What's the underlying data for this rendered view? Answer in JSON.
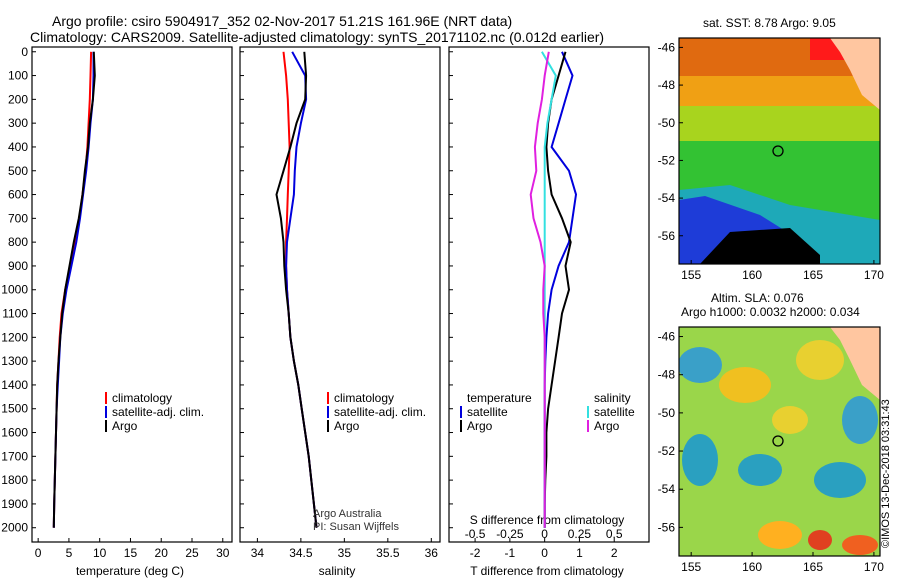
{
  "title_line1": "Argo profile: csiro 5904917_352 02-Nov-2017 51.21S 161.96E (NRT data)",
  "title_line2": "Climatology: CARS2009. Satellite-adjusted climatology: synTS_20171102.nc (0.012d earlier)",
  "map_top_title": "sat. SST: 8.78 Argo: 9.05",
  "map_bottom_title1": "Altim. SLA: 0.076",
  "map_bottom_title2": "Argo h1000: 0.0032 h2000: 0.034",
  "credit": "©IMOS 13-Dec-2018 03:31:43",
  "footnote": [
    "Argo Australia",
    "PI: Susan Wijffels"
  ],
  "colors": {
    "climatology": "#ff0000",
    "satellite": "#0000dd",
    "argo": "#000000",
    "sat_salinity": "#33e0e0",
    "argo_salinity": "#e020e0"
  },
  "pressure_ticks": [
    "0",
    "100",
    "200",
    "300",
    "400",
    "500",
    "600",
    "700",
    "800",
    "900",
    "1000",
    "1100",
    "1200",
    "1300",
    "1400",
    "1500",
    "1600",
    "1700",
    "1800",
    "1900",
    "2000"
  ],
  "legends": {
    "temperature": [
      "climatology",
      "satellite-adj. clim.",
      "Argo"
    ],
    "salinity": [
      "climatology",
      "satellite-adj. clim.",
      "Argo"
    ],
    "difference_left_title": "temperature",
    "difference_left": [
      "satellite",
      "Argo"
    ],
    "difference_right_title": "salinity",
    "difference_right": [
      "satellite",
      "Argo"
    ]
  },
  "chart_data": [
    {
      "type": "line",
      "xlabel": "temperature (deg C)",
      "xticks": [
        "0",
        "5",
        "10",
        "15",
        "20",
        "25",
        "30"
      ],
      "xlim": [
        -1,
        31.5
      ],
      "ylim": [
        2060,
        -20
      ],
      "series": [
        {
          "name": "climatology",
          "color": "#ff0000",
          "x": [
            8.6,
            8.5,
            8.4,
            8.2,
            8.0,
            7.7,
            7.2,
            6.7,
            6.0,
            5.2,
            4.4,
            3.8,
            3.5,
            3.3,
            3.1,
            3.0,
            2.9,
            2.8,
            2.7,
            2.6,
            2.55
          ],
          "y": [
            0,
            100,
            200,
            300,
            400,
            500,
            600,
            700,
            800,
            900,
            1000,
            1100,
            1200,
            1300,
            1400,
            1500,
            1600,
            1700,
            1800,
            1900,
            2000
          ]
        },
        {
          "name": "satellite-adj. clim.",
          "color": "#0000dd",
          "x": [
            9.0,
            9.0,
            8.9,
            8.5,
            8.2,
            7.8,
            7.3,
            6.8,
            6.2,
            5.4,
            4.6,
            4.0,
            3.6,
            3.4,
            3.2,
            3.0,
            2.9,
            2.8,
            2.7,
            2.6,
            2.55
          ],
          "y": [
            0,
            100,
            200,
            300,
            400,
            500,
            600,
            700,
            800,
            900,
            1000,
            1100,
            1200,
            1300,
            1400,
            1500,
            1600,
            1700,
            1800,
            1900,
            2000
          ]
        },
        {
          "name": "Argo",
          "color": "#000000",
          "x": [
            9.05,
            9.2,
            8.9,
            8.4,
            8.1,
            7.6,
            7.2,
            6.6,
            5.8,
            5.1,
            4.4,
            3.9,
            3.6,
            3.3,
            3.1,
            3.0,
            2.9,
            2.8,
            2.7,
            2.6,
            2.55
          ],
          "y": [
            0,
            100,
            200,
            300,
            400,
            500,
            600,
            700,
            800,
            900,
            1000,
            1100,
            1200,
            1300,
            1400,
            1500,
            1600,
            1700,
            1800,
            1900,
            2000
          ]
        }
      ]
    },
    {
      "type": "line",
      "xlabel": "salinity",
      "xticks": [
        "34",
        "34.5",
        "35",
        "35.5",
        "36"
      ],
      "xlim": [
        33.8,
        36.1
      ],
      "ylim": [
        2060,
        -20
      ],
      "series": [
        {
          "name": "climatology",
          "color": "#ff0000",
          "x": [
            34.3,
            34.33,
            34.35,
            34.36,
            34.37,
            34.36,
            34.35,
            34.34,
            34.33,
            34.33,
            34.34,
            34.36,
            34.38,
            34.42,
            34.47,
            34.51,
            34.55,
            34.59,
            34.62,
            34.65,
            34.68
          ],
          "y": [
            0,
            100,
            200,
            300,
            400,
            500,
            600,
            700,
            800,
            900,
            1000,
            1100,
            1200,
            1300,
            1400,
            1500,
            1600,
            1700,
            1800,
            1900,
            2000
          ]
        },
        {
          "name": "satellite-adj. clim.",
          "color": "#0000dd",
          "x": [
            34.4,
            34.55,
            34.56,
            34.5,
            34.45,
            34.43,
            34.42,
            34.38,
            34.34,
            34.33,
            34.34,
            34.36,
            34.38,
            34.42,
            34.47,
            34.51,
            34.55,
            34.59,
            34.62,
            34.65,
            34.68
          ],
          "y": [
            0,
            100,
            200,
            300,
            400,
            500,
            600,
            700,
            800,
            900,
            1000,
            1100,
            1200,
            1300,
            1400,
            1500,
            1600,
            1700,
            1800,
            1900,
            2000
          ]
        },
        {
          "name": "Argo",
          "color": "#000000",
          "x": [
            34.54,
            34.56,
            34.55,
            34.45,
            34.38,
            34.3,
            34.22,
            34.27,
            34.3,
            34.31,
            34.33,
            34.36,
            34.38,
            34.42,
            34.47,
            34.51,
            34.55,
            34.59,
            34.62,
            34.65,
            34.68
          ],
          "y": [
            0,
            100,
            200,
            300,
            400,
            500,
            600,
            700,
            800,
            900,
            1000,
            1100,
            1200,
            1300,
            1400,
            1500,
            1600,
            1700,
            1800,
            1900,
            2000
          ]
        }
      ]
    },
    {
      "type": "line",
      "xlabel": "T difference from climatology",
      "xticks": [
        "-2",
        "-1",
        "0",
        "1",
        "2"
      ],
      "xlim": [
        -2.75,
        3.0
      ],
      "s_axis_title": "S difference from climatology",
      "s_ticks": [
        "-0.5",
        "-0.25",
        "0",
        "0.25",
        "0.5"
      ],
      "s_xlim": [
        -0.6875,
        0.75
      ],
      "ylim": [
        2060,
        -20
      ],
      "series": [
        {
          "name": "temperature satellite",
          "color": "#0000dd",
          "x": [
            0.5,
            0.8,
            0.6,
            0.4,
            0.2,
            0.7,
            0.9,
            0.8,
            0.7,
            0.4,
            0.2,
            0.1,
            0.05,
            0.02,
            0.0,
            0.0,
            0.0,
            0.0,
            0.0,
            0.0,
            0.0
          ],
          "y": [
            0,
            100,
            200,
            300,
            400,
            500,
            600,
            700,
            800,
            900,
            1000,
            1100,
            1200,
            1300,
            1400,
            1500,
            1600,
            1700,
            1800,
            1900,
            2000
          ]
        },
        {
          "name": "temperature Argo",
          "color": "#000000",
          "x": [
            0.6,
            0.4,
            0.2,
            0.1,
            0.05,
            0.1,
            0.2,
            0.5,
            0.75,
            0.6,
            0.7,
            0.5,
            0.4,
            0.3,
            0.2,
            0.1,
            0.05,
            0.05,
            0.02,
            0.0,
            0.0
          ],
          "y": [
            0,
            100,
            200,
            300,
            400,
            500,
            600,
            700,
            800,
            900,
            1000,
            1100,
            1200,
            1300,
            1400,
            1500,
            1600,
            1700,
            1800,
            1900,
            2000
          ]
        },
        {
          "name": "salinity satellite",
          "color": "#33e0e0",
          "x": [
            -0.02,
            0.08,
            0.05,
            0.02,
            0.0,
            0.0,
            0.0,
            0.0,
            0.0,
            0.0,
            0.0,
            0.0,
            0.0,
            0.0,
            0.0,
            0.0,
            0.0,
            0.0,
            0.0,
            0.0,
            0.0
          ],
          "y": [
            0,
            100,
            200,
            300,
            400,
            500,
            600,
            700,
            800,
            900,
            1000,
            1100,
            1200,
            1300,
            1400,
            1500,
            1600,
            1700,
            1800,
            1900,
            2000
          ]
        },
        {
          "name": "salinity Argo",
          "color": "#e020e0",
          "x": [
            0.03,
            0.0,
            -0.02,
            -0.05,
            -0.07,
            -0.06,
            -0.1,
            -0.08,
            -0.03,
            0.0,
            -0.01,
            -0.01,
            0.0,
            0.0,
            0.0,
            0.0,
            0.0,
            0.0,
            0.0,
            0.0,
            0.0
          ],
          "y": [
            0,
            100,
            200,
            300,
            400,
            500,
            600,
            700,
            800,
            900,
            1000,
            1100,
            1200,
            1300,
            1400,
            1500,
            1600,
            1700,
            1800,
            1900,
            2000
          ]
        }
      ]
    },
    {
      "type": "heatmap",
      "title": "sat. SST: 8.78 Argo: 9.05",
      "xticks": [
        "155",
        "160",
        "165",
        "170"
      ],
      "yticks": [
        "-46",
        "-48",
        "-50",
        "-52",
        "-54",
        "-56"
      ],
      "xlim": [
        154.0,
        170.5
      ],
      "ylim": [
        -57.5,
        -45.5
      ],
      "float_position": {
        "lon": 161.96,
        "lat": -51.21
      }
    },
    {
      "type": "heatmap",
      "title": "Altim. SLA: 0.076",
      "subtitle": "Argo h1000: 0.0032 h2000: 0.034",
      "xticks": [
        "155",
        "160",
        "165",
        "170"
      ],
      "yticks": [
        "-46",
        "-48",
        "-50",
        "-52",
        "-54",
        "-56"
      ],
      "xlim": [
        154.0,
        170.5
      ],
      "ylim": [
        -57.5,
        -45.5
      ],
      "float_position": {
        "lon": 161.96,
        "lat": -51.21
      }
    }
  ]
}
